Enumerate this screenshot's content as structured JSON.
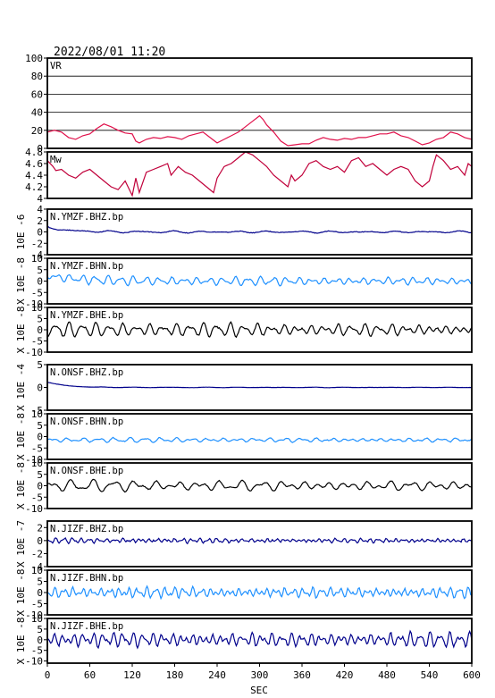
{
  "header": {
    "timestamp": "2022/08/01 11:20"
  },
  "chart_data": {
    "type": "line",
    "xlabel": "SEC",
    "xlim": [
      0,
      600
    ],
    "xticks": [
      0,
      60,
      120,
      180,
      240,
      300,
      360,
      420,
      480,
      540,
      600
    ],
    "panels": [
      {
        "name": "VR",
        "ylim": [
          0,
          100
        ],
        "yticks": [
          0,
          20,
          40,
          60,
          80,
          100
        ],
        "grid": true,
        "color": "#e0104a",
        "points": [
          [
            0,
            18
          ],
          [
            10,
            20
          ],
          [
            20,
            18
          ],
          [
            30,
            12
          ],
          [
            40,
            10
          ],
          [
            50,
            14
          ],
          [
            60,
            16
          ],
          [
            70,
            22
          ],
          [
            80,
            27
          ],
          [
            90,
            24
          ],
          [
            100,
            20
          ],
          [
            110,
            17
          ],
          [
            120,
            16
          ],
          [
            125,
            8
          ],
          [
            130,
            6
          ],
          [
            140,
            10
          ],
          [
            150,
            12
          ],
          [
            160,
            11
          ],
          [
            170,
            13
          ],
          [
            180,
            12
          ],
          [
            190,
            10
          ],
          [
            200,
            14
          ],
          [
            210,
            16
          ],
          [
            220,
            18
          ],
          [
            230,
            12
          ],
          [
            240,
            6
          ],
          [
            250,
            10
          ],
          [
            260,
            14
          ],
          [
            270,
            18
          ],
          [
            280,
            24
          ],
          [
            290,
            30
          ],
          [
            300,
            36
          ],
          [
            305,
            32
          ],
          [
            310,
            26
          ],
          [
            320,
            18
          ],
          [
            330,
            8
          ],
          [
            340,
            3
          ],
          [
            350,
            4
          ],
          [
            360,
            5
          ],
          [
            370,
            5
          ],
          [
            380,
            9
          ],
          [
            390,
            12
          ],
          [
            400,
            10
          ],
          [
            410,
            9
          ],
          [
            420,
            11
          ],
          [
            430,
            10
          ],
          [
            440,
            12
          ],
          [
            450,
            12
          ],
          [
            460,
            14
          ],
          [
            470,
            16
          ],
          [
            480,
            16
          ],
          [
            490,
            18
          ],
          [
            500,
            14
          ],
          [
            510,
            12
          ],
          [
            520,
            8
          ],
          [
            530,
            4
          ],
          [
            540,
            6
          ],
          [
            550,
            10
          ],
          [
            560,
            12
          ],
          [
            570,
            18
          ],
          [
            580,
            16
          ],
          [
            590,
            12
          ],
          [
            600,
            10
          ]
        ]
      },
      {
        "name": "Mw",
        "ylim": [
          4.0,
          4.8
        ],
        "yticks": [
          4.0,
          4.2,
          4.4,
          4.6,
          4.8
        ],
        "grid": false,
        "color": "#c0003a",
        "points": [
          [
            0,
            4.65
          ],
          [
            8,
            4.55
          ],
          [
            12,
            4.48
          ],
          [
            20,
            4.5
          ],
          [
            30,
            4.4
          ],
          [
            40,
            4.35
          ],
          [
            50,
            4.45
          ],
          [
            60,
            4.5
          ],
          [
            70,
            4.4
          ],
          [
            80,
            4.3
          ],
          [
            90,
            4.2
          ],
          [
            100,
            4.15
          ],
          [
            110,
            4.3
          ],
          [
            120,
            4.05
          ],
          [
            125,
            4.35
          ],
          [
            130,
            4.1
          ],
          [
            140,
            4.45
          ],
          [
            150,
            4.5
          ],
          [
            160,
            4.55
          ],
          [
            170,
            4.6
          ],
          [
            175,
            4.4
          ],
          [
            185,
            4.55
          ],
          [
            195,
            4.45
          ],
          [
            205,
            4.4
          ],
          [
            215,
            4.3
          ],
          [
            225,
            4.2
          ],
          [
            235,
            4.1
          ],
          [
            240,
            4.35
          ],
          [
            250,
            4.55
          ],
          [
            260,
            4.6
          ],
          [
            270,
            4.7
          ],
          [
            280,
            4.8
          ],
          [
            290,
            4.75
          ],
          [
            300,
            4.65
          ],
          [
            310,
            4.55
          ],
          [
            320,
            4.4
          ],
          [
            330,
            4.3
          ],
          [
            340,
            4.2
          ],
          [
            345,
            4.4
          ],
          [
            350,
            4.3
          ],
          [
            360,
            4.4
          ],
          [
            370,
            4.6
          ],
          [
            380,
            4.65
          ],
          [
            390,
            4.55
          ],
          [
            400,
            4.5
          ],
          [
            410,
            4.55
          ],
          [
            420,
            4.45
          ],
          [
            430,
            4.65
          ],
          [
            440,
            4.7
          ],
          [
            450,
            4.55
          ],
          [
            460,
            4.6
          ],
          [
            470,
            4.5
          ],
          [
            480,
            4.4
          ],
          [
            490,
            4.5
          ],
          [
            500,
            4.55
          ],
          [
            510,
            4.5
          ],
          [
            520,
            4.3
          ],
          [
            530,
            4.2
          ],
          [
            540,
            4.3
          ],
          [
            545,
            4.55
          ],
          [
            550,
            4.75
          ],
          [
            560,
            4.65
          ],
          [
            570,
            4.5
          ],
          [
            580,
            4.55
          ],
          [
            590,
            4.4
          ],
          [
            595,
            4.6
          ],
          [
            600,
            4.55
          ]
        ]
      },
      {
        "name": "N.YMZF.BHZ.bp",
        "exp": "10E -6",
        "ylim": [
          -4,
          4
        ],
        "yticks": [
          -4,
          -2,
          0,
          2,
          4
        ],
        "color": "#00008b",
        "wave": {
          "amp": 0.15,
          "base": 0,
          "startAmp": 0.8,
          "decay": 30,
          "periods": [
            45,
            31
          ],
          "noise": 0.05
        }
      },
      {
        "name": "N.YMZF.BHN.bp",
        "exp": "X 10E -8",
        "ylim": [
          -10,
          10
        ],
        "yticks": [
          -10,
          -5,
          0,
          5,
          10
        ],
        "color": "#1e90ff",
        "wave": {
          "amp": 1.6,
          "base": 0,
          "startAmp": 2.5,
          "decay": 40,
          "periods": [
            18,
            11.3
          ],
          "noise": 0.2
        }
      },
      {
        "name": "N.YMZF.BHE.bp",
        "exp": "X 10E -8",
        "ylim": [
          -10,
          10
        ],
        "yticks": [
          -10,
          -5,
          0,
          5,
          10
        ],
        "color": "#000000",
        "wave": {
          "amp": 2.6,
          "base": 0,
          "startAmp": 0,
          "decay": 40,
          "periods": [
            19,
            12.7
          ],
          "noise": 0.3
        }
      },
      {
        "name": "N.ONSF.BHZ.bp",
        "exp": "X 10E -4",
        "ylim": [
          -5,
          5
        ],
        "yticks": [
          -5,
          0,
          5
        ],
        "color": "#00008b",
        "wave": {
          "amp": 0.05,
          "base": 0,
          "startAmp": 1.2,
          "decay": 25,
          "periods": [
            50,
            37
          ],
          "noise": 0.02
        }
      },
      {
        "name": "N.ONSF.BHN.bp",
        "exp": "X 10E -8",
        "ylim": [
          -10,
          10
        ],
        "yticks": [
          -10,
          -5,
          0,
          5,
          10
        ],
        "color": "#1e90ff",
        "wave": {
          "amp": 0.9,
          "base": -1.5,
          "startAmp": 0,
          "decay": 40,
          "periods": [
            22,
            13.1
          ],
          "noise": 0.15
        }
      },
      {
        "name": "N.ONSF.BHE.bp",
        "exp": "X 10E -8",
        "ylim": [
          -10,
          10
        ],
        "yticks": [
          -10,
          -5,
          0,
          5,
          10
        ],
        "color": "#000000",
        "wave": {
          "amp": 2.2,
          "base": 0,
          "startAmp": 0,
          "decay": 40,
          "periods": [
            30,
            17.5
          ],
          "noise": 0.2
        }
      },
      {
        "name": "N.JIZF.BHZ.bp",
        "exp": "X 10E -7",
        "ylim": [
          -4,
          3
        ],
        "yticks": [
          -4,
          -2,
          0,
          2
        ],
        "color": "#00008b",
        "wave": {
          "amp": 0.35,
          "base": 0,
          "startAmp": 0,
          "decay": 40,
          "periods": [
            12,
            7.3
          ],
          "noise": 0.1
        }
      },
      {
        "name": "N.JIZF.BHN.bp",
        "exp": "X 10E -8",
        "ylim": [
          -10,
          10
        ],
        "yticks": [
          -10,
          -5,
          0,
          5,
          10
        ],
        "color": "#1e90ff",
        "wave": {
          "amp": 2.4,
          "base": 0,
          "startAmp": 0,
          "decay": 40,
          "periods": [
            13,
            8.1
          ],
          "noise": 0.4
        }
      },
      {
        "name": "N.JIZF.BHE.bp",
        "exp": "X 10E -8",
        "ylim": [
          -11,
          10
        ],
        "yticks": [
          -10,
          -5,
          0,
          5,
          10
        ],
        "color": "#00008b",
        "wave": {
          "amp": 3.4,
          "base": 0,
          "startAmp": 0,
          "decay": 40,
          "periods": [
            14,
            9.3
          ],
          "noise": 0.5
        }
      }
    ]
  }
}
